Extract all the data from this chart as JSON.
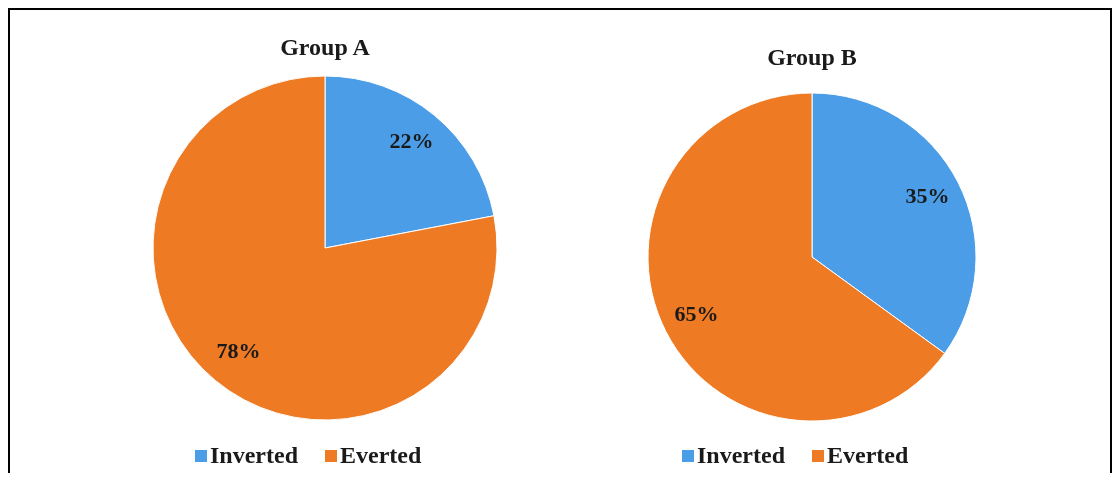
{
  "chart_data": [
    {
      "type": "pie",
      "title": "Group A",
      "categories": [
        "Inverted",
        "Everted"
      ],
      "values": [
        22,
        78
      ],
      "colors": [
        "#4a9de6",
        "#ee7a24"
      ],
      "value_labels": [
        "22%",
        "78%"
      ],
      "legend": "bottom"
    },
    {
      "type": "pie",
      "title": "Group B",
      "categories": [
        "Inverted",
        "Everted"
      ],
      "values": [
        35,
        65
      ],
      "colors": [
        "#4a9de6",
        "#ee7a24"
      ],
      "value_labels": [
        "35%",
        "65%"
      ],
      "legend": "bottom"
    }
  ]
}
